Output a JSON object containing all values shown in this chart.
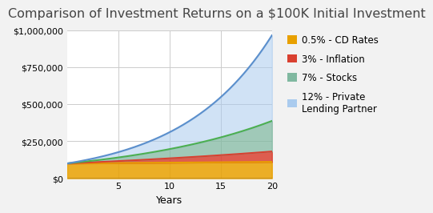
{
  "title": "Comparison of Investment Returns on a $100K Initial Investment",
  "xlabel": "Years",
  "initial": 100000,
  "years": 20,
  "rates": [
    0.005,
    0.03,
    0.07,
    0.12
  ],
  "labels": [
    "0.5% - CD Rates",
    "3% - Inflation",
    "7% - Stocks",
    "12% - Private\nLending Partner"
  ],
  "line_colors": [
    "#E8A000",
    "#D94030",
    "#4CAF50",
    "#5B8FCC"
  ],
  "fill_colors": [
    "#E8A000",
    "#D94030",
    "#80B8A0",
    "#AACBEE"
  ],
  "fill_alphas": [
    0.85,
    0.85,
    0.75,
    0.55
  ],
  "ylim": [
    0,
    1000000
  ],
  "xlim": [
    0,
    20
  ],
  "xticks": [
    5,
    10,
    15,
    20
  ],
  "yticks": [
    0,
    250000,
    500000,
    750000,
    1000000
  ],
  "ytick_labels": [
    "$0",
    "$250,000",
    "$500,000",
    "$750,000",
    "$1,000,000"
  ],
  "title_fontsize": 11.5,
  "label_fontsize": 9,
  "tick_fontsize": 8,
  "legend_fontsize": 8.5,
  "background_color": "#F2F2F2",
  "plot_background": "#FFFFFF",
  "grid_color": "#CCCCCC",
  "bottom_bar_color": "#3A3A3A"
}
